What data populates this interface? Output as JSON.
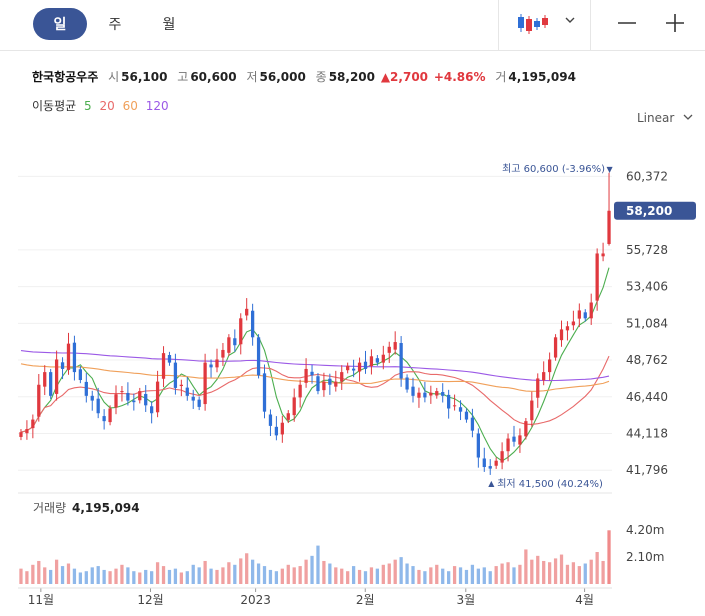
{
  "tabs": [
    {
      "label": "일"
    },
    {
      "label": "주"
    },
    {
      "label": "월"
    }
  ],
  "info": {
    "name": "한국항공우주",
    "open_label": "시",
    "open": "56,100",
    "high_label": "고",
    "high": "60,600",
    "low_label": "저",
    "low": "56,000",
    "close_label": "종",
    "close": "58,200",
    "change": "▲2,700",
    "change_pct": "+4.86%",
    "volume_label": "거",
    "volume": "4,195,094"
  },
  "ma_legend": {
    "label": "이동평균",
    "items": [
      {
        "label": "5",
        "color": "#4cae4f"
      },
      {
        "label": "20",
        "color": "#e86a6a"
      },
      {
        "label": "60",
        "color": "#f0a05a"
      },
      {
        "label": "120",
        "color": "#9b59e6"
      }
    ]
  },
  "scale": {
    "label": "Linear"
  },
  "volume_panel": {
    "label": "거래량",
    "value": "4,195,094"
  },
  "colors": {
    "up": "#e0383e",
    "down": "#2f6fd6",
    "vol_up": "#f0a0a0",
    "vol_down": "#8fb8ea",
    "accent": "#3a5596"
  },
  "chart_data": {
    "type": "candlestick",
    "y_ticks": [
      "60,372",
      "55,728",
      "53,406",
      "51,084",
      "48,762",
      "46,440",
      "44,118",
      "41,796"
    ],
    "ylim": [
      40800,
      62800
    ],
    "current_price": "58,200",
    "x_labels": [
      "11월",
      "12월",
      "2023",
      "2월",
      "3월",
      "4월"
    ],
    "high_annotation": {
      "text": "최고 60,600 (-3.96%)",
      "value": 60600
    },
    "low_annotation": {
      "text": "최저 41,500 (40.24%)",
      "value": 41500
    },
    "volume_ticks": [
      "4.20m",
      "2.10m"
    ],
    "volume_max": 5000000,
    "closes": [
      44200,
      44400,
      45000,
      47200,
      48000,
      46500,
      48800,
      48200,
      49800,
      48000,
      47500,
      46500,
      46200,
      45400,
      44900,
      45700,
      46600,
      46800,
      46200,
      46100,
      46800,
      45900,
      45400,
      47400,
      49200,
      48600,
      47000,
      47200,
      46500,
      46200,
      45800,
      48600,
      48300,
      48800,
      49400,
      50200,
      49700,
      51400,
      52000,
      50200,
      47800,
      45500,
      44600,
      44000,
      44800,
      45400,
      46400,
      47200,
      48200,
      47800,
      46800,
      47400,
      47200,
      47400,
      48000,
      48400,
      48100,
      48600,
      48200,
      49000,
      48600,
      49100,
      49600,
      49900,
      47600,
      46900,
      46500,
      46700,
      46400,
      46700,
      46800,
      46500,
      45700,
      45900,
      45500,
      45000,
      44300,
      42600,
      42000,
      41900,
      42400,
      43000,
      43800,
      43600,
      44000,
      44900,
      46200,
      47600,
      48000,
      48800,
      50200,
      50700,
      50900,
      51200,
      51900,
      51400,
      52400,
      55500,
      55500,
      58200
    ],
    "volumes": [
      1200000,
      1000000,
      1500000,
      1800000,
      1300000,
      1100000,
      1900000,
      1400000,
      1600000,
      1200000,
      900000,
      1000000,
      1300000,
      1400000,
      1100000,
      1000000,
      1200000,
      1500000,
      1300000,
      1000000,
      900000,
      1100000,
      1000000,
      1700000,
      1400000,
      1100000,
      1200000,
      900000,
      1000000,
      1500000,
      1300000,
      1800000,
      1200000,
      1100000,
      1300000,
      1700000,
      1500000,
      2000000,
      2400000,
      1900000,
      1600000,
      1400000,
      1100000,
      1000000,
      1200000,
      1500000,
      1300000,
      1400000,
      1900000,
      2200000,
      3000000,
      1800000,
      1600000,
      1300000,
      1200000,
      1000000,
      1400000,
      1100000,
      1000000,
      1300000,
      1200000,
      1500000,
      1600000,
      1900000,
      2100000,
      1600000,
      1400000,
      1100000,
      1000000,
      1300000,
      1500000,
      1200000,
      1000000,
      1400000,
      1300000,
      1100000,
      1500000,
      1200000,
      1300000,
      1000000,
      1400000,
      1600000,
      1700000,
      1300000,
      1500000,
      2700000,
      1900000,
      2200000,
      1800000,
      1700000,
      2000000,
      2300000,
      1500000,
      1700000,
      1400000,
      1600000,
      1900000,
      2500000,
      1800000,
      4195094
    ]
  }
}
